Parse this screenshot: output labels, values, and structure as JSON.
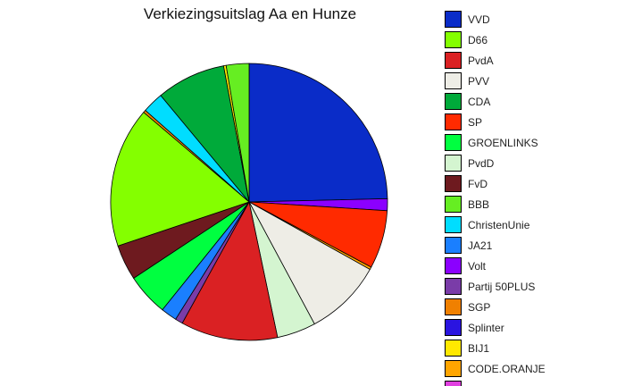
{
  "chart_data": {
    "type": "pie",
    "title": "Verkiezingsuitslag Aa en Hunze",
    "start": "top",
    "direction": "clockwise",
    "legend_position": "right",
    "slices": [
      {
        "label": "VVD",
        "value": 25.0,
        "color": "#0A2CC8"
      },
      {
        "label": "Volt",
        "value": 1.4,
        "color": "#8B00FF"
      },
      {
        "label": "SP",
        "value": 6.9,
        "color": "#FF2A00"
      },
      {
        "label": "CODE.ORANJE",
        "value": 0.3,
        "color": "#FFA500"
      },
      {
        "label": "PVV",
        "value": 9.2,
        "color": "#EEEDE6"
      },
      {
        "label": "PvdD",
        "value": 4.6,
        "color": "#D4F5D0"
      },
      {
        "label": "PvdA",
        "value": 11.5,
        "color": "#DA2123"
      },
      {
        "label": "Partij 50PLUS",
        "value": 0.9,
        "color": "#7A3CA8"
      },
      {
        "label": "JA21",
        "value": 1.9,
        "color": "#1A7FFF"
      },
      {
        "label": "GROENLINKS",
        "value": 5.0,
        "color": "#00FF40"
      },
      {
        "label": "FvD",
        "value": 4.2,
        "color": "#6E1A1F"
      },
      {
        "label": "D66",
        "value": 16.6,
        "color": "#84FF00"
      },
      {
        "label": "SGP",
        "value": 0.3,
        "color": "#F08000"
      },
      {
        "label": "ChristenUnie",
        "value": 2.5,
        "color": "#00DDFF"
      },
      {
        "label": "CDA",
        "value": 8.2,
        "color": "#00AA3A"
      },
      {
        "label": "BIJ1",
        "value": 0.3,
        "color": "#FFE800"
      },
      {
        "label": "BBB",
        "value": 2.7,
        "color": "#66EE22"
      }
    ],
    "legend": [
      {
        "label": "VVD",
        "color": "#0A2CC8"
      },
      {
        "label": "D66",
        "color": "#84FF00"
      },
      {
        "label": "PvdA",
        "color": "#DA2123"
      },
      {
        "label": "PVV",
        "color": "#EEEDE6"
      },
      {
        "label": "CDA",
        "color": "#00AA3A"
      },
      {
        "label": "SP",
        "color": "#FF2A00"
      },
      {
        "label": "GROENLINKS",
        "color": "#00FF40"
      },
      {
        "label": "PvdD",
        "color": "#D4F5D0"
      },
      {
        "label": "FvD",
        "color": "#6E1A1F"
      },
      {
        "label": "BBB",
        "color": "#66EE22"
      },
      {
        "label": "ChristenUnie",
        "color": "#00DDFF"
      },
      {
        "label": "JA21",
        "color": "#1A7FFF"
      },
      {
        "label": "Volt",
        "color": "#8B00FF"
      },
      {
        "label": "Partij 50PLUS",
        "color": "#7A3CA8"
      },
      {
        "label": "SGP",
        "color": "#F08000"
      },
      {
        "label": "Splinter",
        "color": "#2A14E0"
      },
      {
        "label": "BIJ1",
        "color": "#FFE800"
      },
      {
        "label": "CODE.ORANJE",
        "color": "#FFA500"
      },
      {
        "label": "",
        "color": "#E040E0"
      }
    ]
  }
}
